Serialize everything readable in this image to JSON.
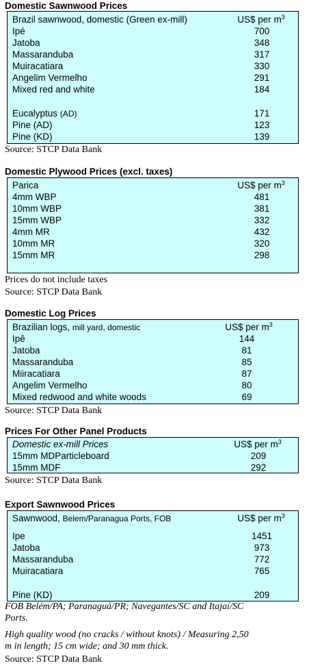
{
  "sawnwood": {
    "title": "Domestic Sawnwood Prices",
    "header_label": "Brazil sawnwood, domestic (Green ex-mill)",
    "header_unit": "US$ per m",
    "unit_sup": "3",
    "rows": [
      {
        "label": "Ipé",
        "value": "700"
      },
      {
        "label": "Jatoba",
        "value": "348"
      },
      {
        "label": "Massaranduba",
        "value": "317"
      },
      {
        "label": "Muiracatiara",
        "value": "330"
      },
      {
        "label": "Angelim Vermelho",
        "value": "291"
      },
      {
        "label": "Mixed red and white",
        "value": "184"
      },
      {
        "label": "Eucalyptus",
        "label_suffix": "(AD)",
        "value": "171"
      },
      {
        "label": "Pine (AD)",
        "value": "123"
      },
      {
        "label": "Pine (KD)",
        "value": "139"
      }
    ],
    "source": "Source: STCP Data Bank"
  },
  "plywood": {
    "title": "Domestic Plywood Prices (excl. taxes)",
    "header_label": "Parica",
    "header_unit": "US$ per m",
    "unit_sup": "3",
    "rows": [
      {
        "label": "4mm WBP",
        "value": "481"
      },
      {
        "label": "10mm WBP",
        "value": "381"
      },
      {
        "label": "15mm WBP",
        "value": "332"
      },
      {
        "label": "4mm MR",
        "value": "432"
      },
      {
        "label": "10mm MR",
        "value": "320"
      },
      {
        "label": "15mm MR",
        "value": "298"
      }
    ],
    "note": "Prices do not include taxes",
    "source": "Source: STCP Data Bank"
  },
  "logs": {
    "title": "Domestic Log Prices",
    "header_label": "Brazilian logs,",
    "header_label_small": "mill yard, domestic",
    "header_unit": "US$ per m",
    "unit_sup": "3",
    "rows": [
      {
        "label": "Ipê",
        "value": "144"
      },
      {
        "label": "Jatoba",
        "value": "81"
      },
      {
        "label": "Massaranduba",
        "value": "85"
      },
      {
        "label": "Miiracatiara",
        "value": "87"
      },
      {
        "label": "Angelim Vermelho",
        "value": "80"
      },
      {
        "label": "Mixed redwood and white woods",
        "value": "69"
      }
    ],
    "source": "Source: STCP Data Bank"
  },
  "panels": {
    "title": "Prices For Other Panel Products",
    "header_label": "Domestic ex-mill Prices",
    "header_unit": "US$ per m",
    "unit_sup": "3",
    "rows": [
      {
        "label": "15mm MDParticleboard",
        "value": "209"
      },
      {
        "label": "15mm MDF",
        "value": "292"
      }
    ],
    "source": "Source: STCP Data Bank"
  },
  "export": {
    "title": "Export Sawnwood Prices",
    "header_label": "Sawnwood,",
    "header_label_small": "Belem/Paranagua Ports, FOB",
    "header_unit": "US$ per m",
    "unit_sup": "3",
    "rows": [
      {
        "label": "Ipe",
        "value": "1451"
      },
      {
        "label": "Jatoba",
        "value": "973"
      },
      {
        "label": "Massaranduba",
        "value": "772"
      },
      {
        "label": "Muiracatiara",
        "value": "765"
      },
      {
        "label": "Pine (KD)",
        "value": "209"
      }
    ],
    "note_line1": "FOB Belém/PA;  Paranaguá/PR;  Navegantes/SC  and  Itajaí/SC",
    "note_line2": "Ports.",
    "note_line3": "High quality wood (no cracks / without knots) / Measuring 2,50",
    "note_line4": "m in length; 15 cm wide; and 30 mm thick.",
    "source": "Source: STCP Data Bank"
  }
}
